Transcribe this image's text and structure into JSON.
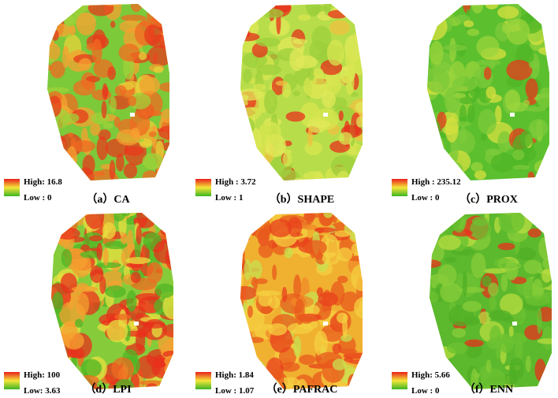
{
  "panels": [
    {
      "caption": "（a）CA",
      "high": "High: 16.8",
      "low": "Low : 0"
    },
    {
      "caption": "（b）SHAPE",
      "high": "High : 3.72",
      "low": "Low : 1"
    },
    {
      "caption": "（c）PROX",
      "high": "High : 235.12",
      "low": "Low : 0"
    },
    {
      "caption": "（d）LPI",
      "high": "High: 100",
      "low": "Low: 3.63"
    },
    {
      "caption": "（e）PAFRAC",
      "high": "High: 1.84",
      "low": "Low : 1.07"
    },
    {
      "caption": "（f）ENN",
      "high": "High: 5.66",
      "low": "Low : 0"
    }
  ]
}
